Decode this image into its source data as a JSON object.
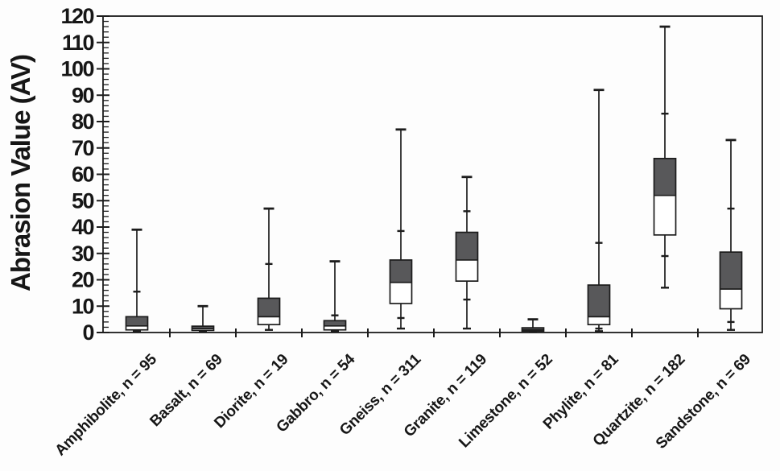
{
  "figure": {
    "background": "#fdfdfd",
    "ink": "#1c1c1c",
    "box_fill_dark": "#58585a",
    "box_fill_light": "#ffffff"
  },
  "chart_data": {
    "type": "boxplot",
    "title": "",
    "xlabel": "",
    "ylabel": "Abrasion Value (AV)",
    "ylim": [
      0,
      120
    ],
    "y_major_step": 10,
    "y_minor_step": 2,
    "y_tick_labels": [
      0,
      10,
      20,
      30,
      40,
      50,
      60,
      70,
      80,
      90,
      100,
      110,
      120
    ],
    "grid": false,
    "legend": null,
    "box_style": {
      "upper_half_fill": "dark-gray (median to Q3)",
      "lower_half_fill": "white (Q1 to median)",
      "whisker_markers": "small dashes at ~10th and ~90th percentiles"
    },
    "boxes": [
      {
        "label": "Amphibolite, n = 95",
        "n": 95,
        "min": 0.5,
        "p10": null,
        "q1": 1,
        "median": 2.5,
        "q3": 6,
        "p90": 15.5,
        "max": 39
      },
      {
        "label": "Basalt, n = 69",
        "n": 69,
        "min": 0.3,
        "p10": null,
        "q1": 0.8,
        "median": 1.5,
        "q3": 2.4,
        "p90": null,
        "max": 10
      },
      {
        "label": "Diorite, n = 19",
        "n": 19,
        "min": 1,
        "p10": null,
        "q1": 3,
        "median": 6,
        "q3": 13,
        "p90": 26,
        "max": 47
      },
      {
        "label": "Gabbro, n = 54",
        "n": 54,
        "min": 0.5,
        "p10": null,
        "q1": 1,
        "median": 2.5,
        "q3": 4.5,
        "p90": 6.5,
        "max": 27
      },
      {
        "label": "Gneiss, n = 311",
        "n": 311,
        "min": 1.5,
        "p10": 5.5,
        "q1": 11,
        "median": 19,
        "q3": 27.5,
        "p90": 38.5,
        "max": 77
      },
      {
        "label": "Granite, n = 119",
        "n": 119,
        "min": 1.5,
        "p10": 12.5,
        "q1": 19.5,
        "median": 27.5,
        "q3": 38,
        "p90": 46,
        "max": 59
      },
      {
        "label": "Limestone, n = 52",
        "n": 52,
        "min": 0.2,
        "p10": null,
        "q1": 0.5,
        "median": 1,
        "q3": 1.8,
        "p90": null,
        "max": 5
      },
      {
        "label": "Phylite, n = 81",
        "n": 81,
        "min": 0.5,
        "p10": 1.5,
        "q1": 3,
        "median": 6,
        "q3": 18,
        "p90": 34,
        "max": 92
      },
      {
        "label": "Quartzite, n = 182",
        "n": 182,
        "min": 17,
        "p10": 29,
        "q1": 37,
        "median": 52,
        "q3": 66,
        "p90": 83,
        "max": 116
      },
      {
        "label": "Sandstone, n = 69",
        "n": 69,
        "min": 1,
        "p10": 4,
        "q1": 9,
        "median": 16.5,
        "q3": 30.5,
        "p90": 47,
        "max": 73
      }
    ]
  }
}
